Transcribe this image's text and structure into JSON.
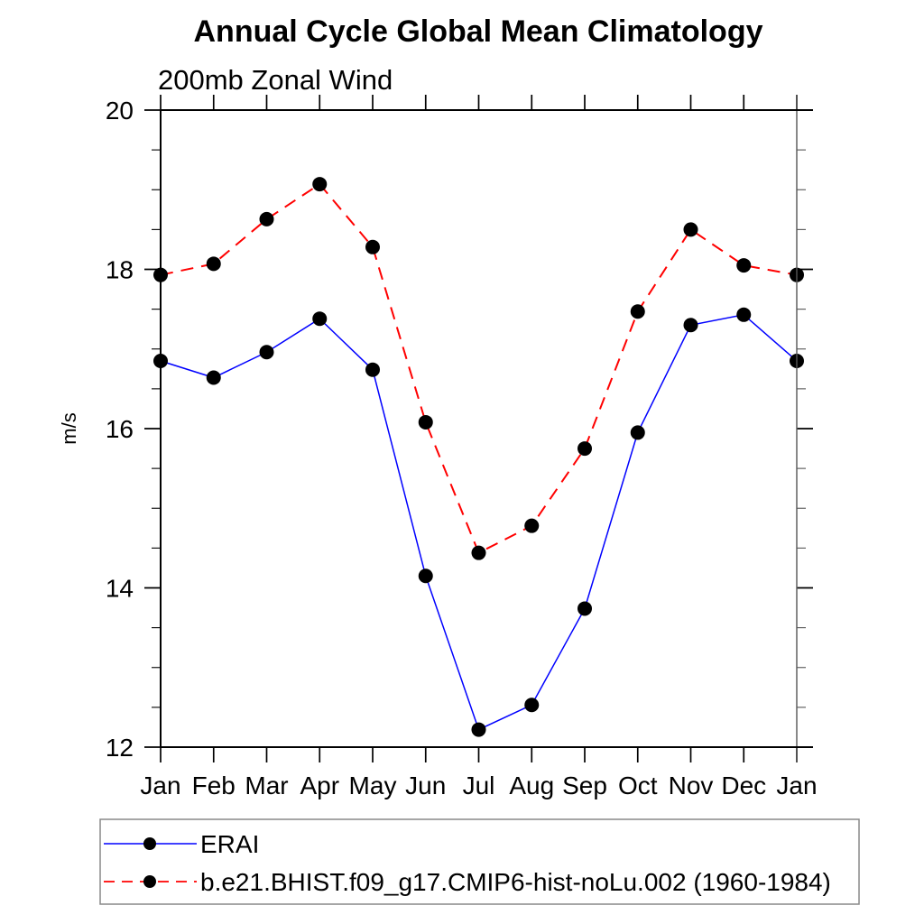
{
  "chart_data": {
    "type": "line",
    "title": "Annual Cycle Global Mean Climatology",
    "subtitle": "200mb Zonal Wind",
    "ylabel": "m/s",
    "ylim": [
      12,
      20
    ],
    "yticks": [
      12,
      14,
      16,
      18,
      20
    ],
    "y_minor_step": 0.5,
    "grid": false,
    "legend_position": "bottom-left-box",
    "categories": [
      "Jan",
      "Feb",
      "Mar",
      "Apr",
      "May",
      "Jun",
      "Jul",
      "Aug",
      "Sep",
      "Oct",
      "Nov",
      "Dec",
      "Jan"
    ],
    "marker_color": "#000000",
    "series": [
      {
        "name": "ERAI",
        "color": "#0000ff",
        "style": "solid",
        "marker": "black-dot",
        "values": [
          16.85,
          16.64,
          16.96,
          17.38,
          16.74,
          14.15,
          12.22,
          12.53,
          13.74,
          15.95,
          17.3,
          17.43,
          16.85
        ]
      },
      {
        "name": "b.e21.BHIST.f09_g17.CMIP6-hist-noLu.002 (1960-1984)",
        "color": "#ff0000",
        "style": "dashed",
        "marker": "black-dot",
        "values": [
          17.93,
          18.07,
          18.63,
          19.07,
          18.28,
          16.08,
          14.44,
          14.78,
          15.75,
          17.47,
          18.5,
          18.05,
          17.93
        ]
      }
    ]
  }
}
